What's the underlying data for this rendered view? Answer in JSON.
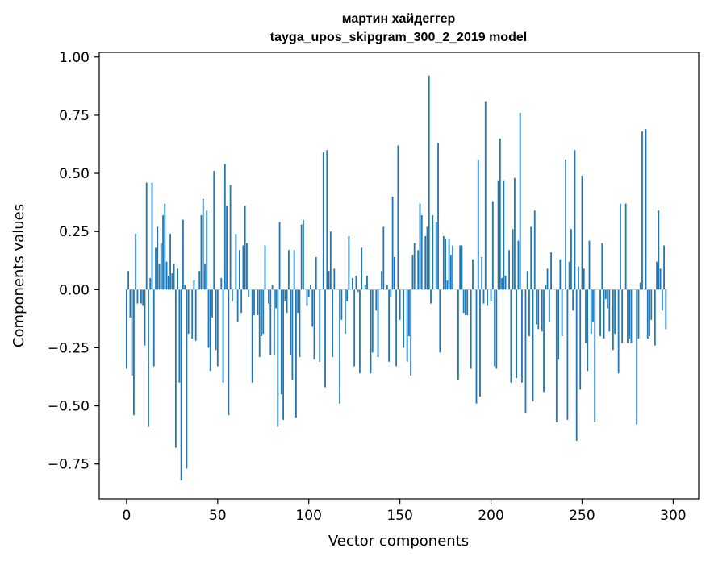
{
  "chart_data": {
    "type": "bar",
    "title_line1": "мартин хайдеггер",
    "title_line2": "tayga_upos_skipgram_300_2_2019 model",
    "xlabel": "Vector components",
    "ylabel": "Components values",
    "xlim": [
      -15,
      314
    ],
    "ylim": [
      -0.9,
      1.02
    ],
    "xticks": [
      0,
      50,
      100,
      150,
      200,
      250,
      300
    ],
    "yticks": [
      -0.75,
      -0.5,
      -0.25,
      0.0,
      0.25,
      0.5,
      0.75,
      1.0
    ],
    "ytick_labels": [
      "−0.75",
      "−0.50",
      "−0.25",
      "0.00",
      "0.25",
      "0.50",
      "0.75",
      "1.00"
    ],
    "xtick_labels": [
      "0",
      "50",
      "100",
      "150",
      "200",
      "250",
      "300"
    ],
    "bar_color": "#1f77b4",
    "grid": false,
    "values": [
      -0.34,
      0.08,
      -0.12,
      -0.37,
      -0.54,
      0.24,
      -0.06,
      0.0,
      -0.06,
      -0.07,
      -0.24,
      0.46,
      -0.59,
      0.05,
      0.46,
      -0.33,
      0.18,
      0.27,
      0.11,
      0.2,
      0.32,
      0.37,
      0.12,
      0.06,
      0.24,
      0.07,
      0.11,
      -0.68,
      0.09,
      -0.4,
      -0.82,
      0.3,
      0.02,
      -0.77,
      -0.19,
      0.0,
      -0.21,
      0.04,
      -0.22,
      0.0,
      0.08,
      0.32,
      0.39,
      0.11,
      0.34,
      -0.25,
      -0.35,
      -0.12,
      0.51,
      -0.26,
      -0.33,
      0.0,
      0.05,
      -0.4,
      0.54,
      0.36,
      -0.54,
      0.45,
      -0.05,
      0.0,
      0.24,
      -0.14,
      0.17,
      -0.1,
      0.19,
      0.36,
      0.2,
      -0.03,
      0.0,
      -0.4,
      -0.11,
      0.0,
      -0.11,
      -0.29,
      -0.2,
      -0.19,
      0.19,
      0.0,
      -0.06,
      -0.28,
      0.02,
      -0.28,
      -0.08,
      -0.59,
      0.29,
      -0.45,
      -0.56,
      -0.05,
      -0.1,
      0.17,
      -0.28,
      -0.39,
      0.17,
      -0.55,
      -0.1,
      -0.29,
      0.28,
      0.3,
      0.0,
      -0.07,
      -0.03,
      0.02,
      -0.16,
      -0.3,
      0.14,
      0.0,
      -0.31,
      0.0,
      0.59,
      -0.42,
      0.6,
      0.08,
      0.25,
      -0.29,
      0.09,
      0.0,
      0.0,
      -0.49,
      -0.13,
      0.0,
      -0.19,
      -0.05,
      0.23,
      0.0,
      0.05,
      -0.33,
      0.06,
      -0.01,
      -0.36,
      0.18,
      0.0,
      0.02,
      0.06,
      0.0,
      -0.36,
      -0.27,
      0.0,
      -0.09,
      -0.29,
      0.0,
      0.08,
      0.27,
      0.0,
      0.02,
      -0.31,
      -0.03,
      0.4,
      0.14,
      -0.33,
      0.62,
      -0.13,
      0.0,
      -0.25,
      0.0,
      -0.31,
      -0.2,
      -0.37,
      0.15,
      0.2,
      0.0,
      0.17,
      0.37,
      0.32,
      0.0,
      0.23,
      0.27,
      0.92,
      -0.06,
      0.32,
      0.0,
      0.29,
      0.63,
      -0.27,
      0.0,
      0.23,
      0.22,
      0.04,
      0.22,
      0.15,
      0.19,
      0.0,
      0.0,
      -0.39,
      0.19,
      0.19,
      -0.1,
      -0.11,
      -0.11,
      0.0,
      -0.34,
      0.13,
      0.0,
      -0.49,
      0.56,
      -0.46,
      0.14,
      -0.06,
      0.81,
      -0.07,
      0.0,
      -0.05,
      0.38,
      -0.33,
      -0.34,
      0.47,
      0.65,
      0.05,
      0.47,
      0.06,
      0.0,
      0.17,
      -0.4,
      0.26,
      0.48,
      -0.38,
      0.21,
      0.76,
      -0.4,
      0.0,
      -0.53,
      0.08,
      -0.2,
      0.27,
      -0.48,
      0.34,
      -0.15,
      -0.17,
      0.0,
      -0.18,
      -0.44,
      0.02,
      0.09,
      -0.14,
      0.16,
      0.0,
      0.0,
      -0.57,
      -0.3,
      0.13,
      -0.2,
      0.0,
      0.56,
      -0.56,
      0.12,
      0.26,
      -0.09,
      0.6,
      -0.65,
      0.1,
      -0.43,
      0.49,
      0.09,
      -0.23,
      -0.35,
      0.21,
      -0.19,
      -0.14,
      -0.57,
      0.0,
      0.0,
      -0.2,
      0.2,
      -0.21,
      -0.04,
      -0.08,
      -0.18,
      0.0,
      -0.26,
      -0.19,
      0.0,
      -0.36,
      0.37,
      -0.23,
      0.0,
      0.37,
      -0.23,
      -0.21,
      -0.23,
      0.0,
      0.0,
      -0.58,
      -0.21,
      0.03,
      0.68,
      0.0,
      0.69,
      -0.21,
      -0.2,
      -0.13,
      0.0,
      -0.24,
      0.12,
      0.34,
      0.09,
      -0.09,
      0.19,
      -0.17
    ]
  }
}
